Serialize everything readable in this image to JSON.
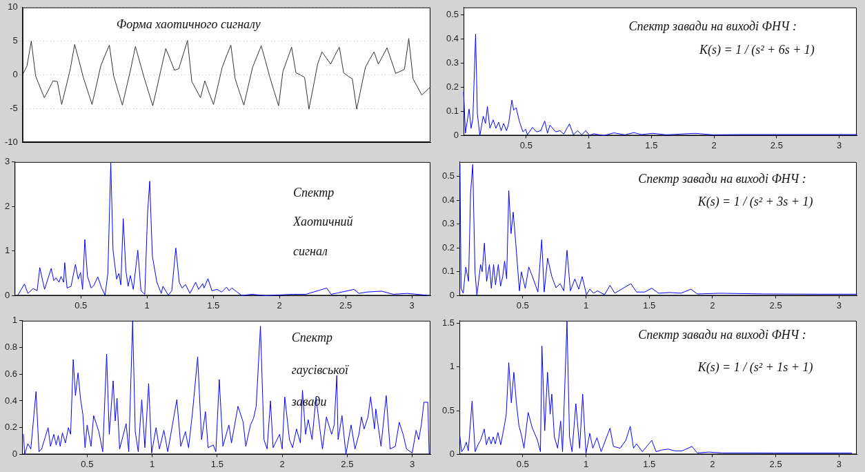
{
  "chart_data": [
    {
      "type": "line",
      "color": "#333333",
      "grid": "y",
      "tick_labels": "y",
      "annotations": [
        "Форма  хаотичного сигналу"
      ],
      "ylim": [
        -10,
        10
      ],
      "yticks": [
        -10,
        -5,
        0,
        5,
        10
      ],
      "categories": [
        null,
        null,
        null,
        null,
        null,
        null,
        null,
        null,
        null,
        null,
        null,
        null,
        null,
        null,
        null,
        null,
        null,
        null,
        null,
        null,
        null,
        null,
        null,
        null,
        null,
        null,
        null,
        null,
        null,
        null,
        null,
        null,
        null,
        null,
        null,
        null,
        null,
        null,
        null,
        null,
        null,
        null,
        null,
        null,
        null,
        null,
        null,
        null,
        null,
        null,
        null,
        null,
        null,
        null,
        null,
        null,
        null,
        null,
        null,
        null,
        null,
        null,
        null,
        null,
        null,
        null,
        null,
        null,
        null,
        null,
        null,
        null,
        null,
        null,
        null,
        null,
        null,
        null,
        null,
        null,
        null,
        null,
        null,
        null,
        null,
        null,
        null,
        null,
        null,
        null,
        null,
        null,
        null,
        null,
        null
      ],
      "values": [
        0,
        1.3,
        5,
        -0.2,
        -1.8,
        -3.4,
        -2.2,
        -0.9,
        -1,
        -4.4,
        -1.8,
        0.9,
        4.5,
        2.1,
        -0.4,
        -2.4,
        -4.4,
        -1.6,
        1.3,
        2.9,
        4.4,
        -0.2,
        -2.4,
        -4.5,
        -1.7,
        1.1,
        4.2,
        1.9,
        -0.4,
        -2.5,
        -4.6,
        -1.8,
        1.1,
        3.9,
        2.3,
        0.7,
        0.9,
        3,
        5.1,
        -1,
        -2.2,
        -3.4,
        -0.9,
        -2.7,
        -4.4,
        -1.7,
        1.1,
        2.8,
        4.4,
        -0.6,
        -2.6,
        -4.5,
        -1.7,
        1.1,
        2.7,
        4.3,
        2,
        -0.4,
        -2.5,
        -4.6,
        0.5,
        2.3,
        4.1,
        0.3,
        0,
        -0.4,
        -5.1,
        -1.8,
        1.6,
        3.4,
        2.5,
        1.6,
        2.9,
        4.1,
        0.3,
        -0.2,
        -0.6,
        -5.1,
        -2,
        1.1,
        2.3,
        3.4,
        1.6,
        2.8,
        4,
        2.1,
        0.2,
        0.5,
        0.8,
        5.4,
        -0.6,
        -1.8,
        -3,
        -2.4,
        -1.8
      ]
    },
    {
      "type": "line",
      "color": "#0000ff",
      "annotations": [
        "Спектр  завади на виході ФНЧ :",
        "K(s) = 1 / (s² + 6s + 1)"
      ],
      "xlim": [
        0,
        3.14
      ],
      "xticks": [
        0.5,
        1,
        1.5,
        2,
        2.5,
        3
      ],
      "ylim": [
        0,
        0.53
      ],
      "yticks": [
        0,
        0.1,
        0.2,
        0.3,
        0.4,
        0.5
      ],
      "x": [
        0,
        0.015,
        0.044,
        0.06,
        0.074,
        0.096,
        0.11,
        0.13,
        0.157,
        0.175,
        0.19,
        0.21,
        0.236,
        0.258,
        0.28,
        0.3,
        0.32,
        0.343,
        0.36,
        0.386,
        0.4,
        0.42,
        0.445,
        0.474,
        0.496,
        0.51,
        0.55,
        0.583,
        0.616,
        0.648,
        0.67,
        0.69,
        0.736,
        0.77,
        0.8,
        0.845,
        0.878,
        0.91,
        0.943,
        0.976,
        1.004,
        1.04,
        1.12,
        1.2,
        1.29,
        1.36,
        1.42,
        1.51,
        1.62,
        1.85,
        1.99,
        2.21,
        2.65,
        3.14
      ],
      "values": [
        0.18,
        0.01,
        0.11,
        0.03,
        0.07,
        0.42,
        0.09,
        0,
        0.08,
        0.05,
        0.12,
        0.03,
        0.065,
        0.03,
        0.055,
        0.02,
        0.05,
        0.02,
        0.05,
        0.147,
        0.105,
        0.115,
        0.06,
        0.015,
        0.026,
        0.003,
        0.034,
        0.015,
        0.02,
        0.06,
        0.01,
        0.043,
        0.015,
        0.02,
        0.006,
        0.048,
        0.003,
        0.02,
        0.003,
        0.02,
        0.001,
        0.007,
        0,
        0.011,
        0.003,
        0.012,
        0.004,
        0.009,
        0.003,
        0.009,
        0.003,
        0.004,
        0.004,
        0.004
      ]
    },
    {
      "type": "line",
      "color": "#0000ff",
      "annotations": [
        "Спектр",
        "Хаотичний",
        "сигнал"
      ],
      "xlim": [
        0,
        3.14
      ],
      "xticks": [
        0.5,
        1,
        1.5,
        2,
        2.5,
        3
      ],
      "ylim": [
        0,
        3
      ],
      "yticks": [
        0,
        1,
        2,
        3
      ],
      "x": [
        0.024,
        0.074,
        0.1,
        0.14,
        0.17,
        0.19,
        0.226,
        0.276,
        0.296,
        0.313,
        0.335,
        0.35,
        0.37,
        0.378,
        0.396,
        0.426,
        0.459,
        0.48,
        0.498,
        0.513,
        0.53,
        0.55,
        0.578,
        0.6,
        0.628,
        0.657,
        0.683,
        0.704,
        0.726,
        0.743,
        0.77,
        0.787,
        0.802,
        0.82,
        0.84,
        0.857,
        0.874,
        0.896,
        0.93,
        0.954,
        0.983,
        1.004,
        1.02,
        1.04,
        1.074,
        1.107,
        1.12,
        1.16,
        1.187,
        1.217,
        1.243,
        1.265,
        1.29,
        1.324,
        1.367,
        1.39,
        1.42,
        1.43,
        1.46,
        1.49,
        1.53,
        1.563,
        1.6,
        1.62,
        1.64,
        1.68,
        1.715,
        1.79,
        1.9,
        2.1,
        2.2,
        2.357,
        2.39,
        2.44,
        2.563,
        2.6,
        2.66,
        2.77,
        2.86,
        2.965,
        3.11
      ],
      "values": [
        0.01,
        0.26,
        0.05,
        0.16,
        0.11,
        0.63,
        0.14,
        0.61,
        0.34,
        0.4,
        0.3,
        0.43,
        0.3,
        0.74,
        0.17,
        0.21,
        0.7,
        0.37,
        0.52,
        0.14,
        1.26,
        0.43,
        0.17,
        0.24,
        0.42,
        0.17,
        0.01,
        0.5,
        2.98,
        1.02,
        0.37,
        0.5,
        0.24,
        1.73,
        0.56,
        0.21,
        0.45,
        0.14,
        1.02,
        0.11,
        0.03,
        1.86,
        2.57,
        0.89,
        0.3,
        0.05,
        0.21,
        0.01,
        0.11,
        1.07,
        0.3,
        0.17,
        0.25,
        0.05,
        0.3,
        0.14,
        0.27,
        0.17,
        0.38,
        0.11,
        0.14,
        0.08,
        0.19,
        0.11,
        0.17,
        0.08,
        0,
        0.03,
        0,
        0.03,
        0.03,
        0.17,
        0.03,
        0.06,
        0.14,
        0.05,
        0.08,
        0.1,
        0.03,
        0.05,
        0.01
      ]
    },
    {
      "type": "line",
      "color": "#0000ff",
      "annotations": [
        "Спектр  завади на виході ФНЧ :",
        "K(s) = 1 / (s² + 3s + 1)"
      ],
      "xlim": [
        0,
        3.14
      ],
      "xticks": [
        0.5,
        1,
        1.5,
        2,
        2.5,
        3
      ],
      "ylim": [
        0,
        0.56
      ],
      "yticks": [
        0,
        0.1,
        0.2,
        0.3,
        0.4,
        0.5
      ],
      "x": [
        0.004,
        0.013,
        0.03,
        0.05,
        0.072,
        0.088,
        0.105,
        0.123,
        0.138,
        0.167,
        0.18,
        0.197,
        0.215,
        0.237,
        0.252,
        0.27,
        0.285,
        0.307,
        0.325,
        0.342,
        0.357,
        0.373,
        0.39,
        0.408,
        0.425,
        0.445,
        0.474,
        0.49,
        0.52,
        0.548,
        0.577,
        0.62,
        0.65,
        0.67,
        0.697,
        0.73,
        0.763,
        0.796,
        0.825,
        0.85,
        0.877,
        0.912,
        0.943,
        0.97,
        1.004,
        1.03,
        1.06,
        1.09,
        1.147,
        1.19,
        1.228,
        1.3,
        1.355,
        1.4,
        1.465,
        1.52,
        1.575,
        1.66,
        1.75,
        1.83,
        1.88,
        2.06,
        2.41,
        2.85,
        3.14
      ],
      "values": [
        0.55,
        0.03,
        0.01,
        0.12,
        0.06,
        0.43,
        0.55,
        0.1,
        0,
        0.13,
        0.1,
        0.22,
        0.06,
        0.13,
        0.03,
        0.13,
        0.045,
        0.13,
        0.04,
        0.08,
        0.145,
        0.07,
        0.44,
        0.26,
        0.35,
        0.22,
        0.02,
        0.1,
        0.03,
        0.12,
        0.08,
        0.015,
        0.234,
        0.015,
        0.157,
        0.08,
        0.033,
        0.05,
        0.02,
        0.19,
        0.02,
        0.07,
        0.027,
        0.08,
        0.004,
        0.027,
        0.01,
        0.02,
        0.004,
        0.043,
        0.01,
        0.033,
        0.05,
        0.015,
        0.015,
        0.031,
        0.01,
        0.013,
        0.01,
        0.027,
        0.007,
        0.01,
        0.007,
        0.006,
        0.006
      ]
    },
    {
      "type": "line",
      "color": "#0000ff",
      "annotations": [
        "Спектр",
        "гаусівської",
        "завади"
      ],
      "xlim": [
        0,
        3.14
      ],
      "xticks": [
        0.5,
        1,
        1.5,
        2,
        2.5,
        3
      ],
      "ylim": [
        0,
        1
      ],
      "yticks": [
        0,
        0.2,
        0.4,
        0.6,
        0.8,
        1
      ],
      "x": [
        0.01,
        0.02,
        0.044,
        0.067,
        0.107,
        0.13,
        0.15,
        0.178,
        0.2,
        0.218,
        0.244,
        0.262,
        0.278,
        0.293,
        0.31,
        0.333,
        0.356,
        0.373,
        0.393,
        0.41,
        0.43,
        0.45,
        0.467,
        0.484,
        0.5,
        0.53,
        0.55,
        0.59,
        0.62,
        0.65,
        0.67,
        0.7,
        0.716,
        0.73,
        0.75,
        0.8,
        0.82,
        0.85,
        0.87,
        0.893,
        0.92,
        0.944,
        0.973,
        0.996,
        1.03,
        1.056,
        1.09,
        1.12,
        1.19,
        1.22,
        1.256,
        1.28,
        1.31,
        1.35,
        1.38,
        1.41,
        1.43,
        1.47,
        1.49,
        1.516,
        1.544,
        1.59,
        1.61,
        1.66,
        1.7,
        1.72,
        1.756,
        1.78,
        1.8,
        1.833,
        1.86,
        1.884,
        1.91,
        1.93,
        1.98,
        2.0,
        2.02,
        2.056,
        2.08,
        2.11,
        2.14,
        2.156,
        2.18,
        2.2,
        2.23,
        2.26,
        2.29,
        2.31,
        2.34,
        2.38,
        2.4,
        2.42,
        2.43,
        2.46,
        2.49,
        2.53,
        2.56,
        2.59,
        2.61,
        2.63,
        2.66,
        2.68,
        2.71,
        2.72,
        2.76,
        2.8,
        2.83,
        2.87,
        2.9,
        2.93,
        2.956,
        3.0,
        3.03,
        3.05,
        3.07,
        3.09,
        3.12,
        3.13
      ],
      "values": [
        0.15,
        0,
        0.08,
        0.04,
        0.47,
        0.02,
        0.04,
        0.13,
        0.2,
        0.06,
        0.15,
        0.07,
        0.14,
        0.06,
        0.16,
        0.085,
        0.2,
        0.15,
        0.71,
        0.44,
        0.61,
        0.41,
        0.3,
        0.05,
        0.22,
        0.06,
        0.29,
        0.17,
        0.02,
        0.75,
        0.15,
        0.55,
        0.25,
        0.42,
        0.04,
        0.23,
        0.02,
        1,
        0.17,
        0.02,
        0.41,
        0.05,
        0.53,
        0.01,
        0.2,
        0.04,
        0.18,
        0.02,
        0.41,
        0.06,
        0.17,
        0.05,
        0.31,
        0.73,
        0.11,
        0.32,
        0.05,
        0.07,
        0.02,
        0.56,
        0.06,
        0.22,
        0.085,
        0.36,
        0.24,
        0.06,
        0.22,
        0.27,
        0.36,
        0.96,
        0.11,
        0.04,
        0.4,
        0.05,
        0.15,
        0.04,
        0.43,
        0.11,
        0.05,
        0.19,
        0.085,
        0.48,
        0.15,
        0.26,
        0.11,
        0.43,
        0.19,
        0.04,
        0.28,
        0.15,
        0.22,
        0.59,
        0.11,
        0.29,
        0,
        0.22,
        0.04,
        0.15,
        0.28,
        0.19,
        0.28,
        0.43,
        0.19,
        0.34,
        0.06,
        0.44,
        0.04,
        0.06,
        0.24,
        0.15,
        0.04,
        0.01,
        0.18,
        0.11,
        0.22,
        0.39,
        0.39,
        0
      ]
    },
    {
      "type": "line",
      "color": "#0000ff",
      "annotations": [
        "Спектр  завади на виході ФНЧ :",
        "K(s) = 1 / (s² + 1s + 1)"
      ],
      "xlim": [
        0,
        3.14
      ],
      "xticks": [
        0.5,
        1,
        1.5,
        2,
        2.5,
        3
      ],
      "ylim": [
        0,
        1.53
      ],
      "yticks": [
        0,
        0.5,
        1,
        1.5
      ],
      "x": [
        0.004,
        0.017,
        0.037,
        0.054,
        0.07,
        0.1,
        0.124,
        0.15,
        0.167,
        0.196,
        0.213,
        0.233,
        0.25,
        0.267,
        0.283,
        0.304,
        0.326,
        0.354,
        0.37,
        0.39,
        0.41,
        0.43,
        0.45,
        0.47,
        0.49,
        0.51,
        0.543,
        0.576,
        0.615,
        0.64,
        0.652,
        0.674,
        0.696,
        0.717,
        0.73,
        0.75,
        0.776,
        0.8,
        0.815,
        0.85,
        0.87,
        0.89,
        0.92,
        0.95,
        0.974,
        1.0,
        1.03,
        1.054,
        1.087,
        1.12,
        1.19,
        1.217,
        1.27,
        1.315,
        1.35,
        1.376,
        1.4,
        1.446,
        1.52,
        1.554,
        1.6,
        1.65,
        1.7,
        1.76,
        1.837,
        1.88,
        1.97,
        2.08,
        2.29,
        2.49,
        3.1
      ],
      "values": [
        0.2,
        0.03,
        0.07,
        0.14,
        0.04,
        0.61,
        0.03,
        0.12,
        0.16,
        0.29,
        0.11,
        0.2,
        0.12,
        0.2,
        0.12,
        0.25,
        0.11,
        0.32,
        0.46,
        1.05,
        0.59,
        0.94,
        0.59,
        0.33,
        0.22,
        0.07,
        0.48,
        0.3,
        0.17,
        0.03,
        1.24,
        0.27,
        0.94,
        0.46,
        0.69,
        0.2,
        0.07,
        0.38,
        0.03,
        1.52,
        0.2,
        0.03,
        0.58,
        0.07,
        0.69,
        0.01,
        0.24,
        0.07,
        0.19,
        0.03,
        0.3,
        0.09,
        0.07,
        0.16,
        0.32,
        0.07,
        0.12,
        0.03,
        0.16,
        0.03,
        0.05,
        0.06,
        0.04,
        0.04,
        0.09,
        0.016,
        0.026,
        0.016,
        0.016,
        0.015,
        0.015
      ]
    }
  ]
}
